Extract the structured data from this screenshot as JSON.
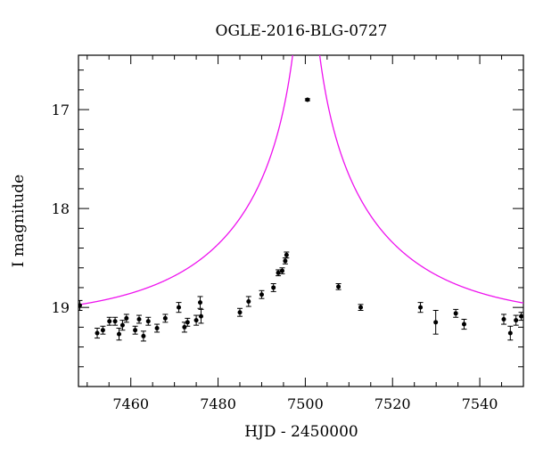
{
  "chart_data": {
    "type": "scatter",
    "title": "OGLE-2016-BLG-0727",
    "xlabel": "HJD - 2450000",
    "ylabel": "I magnitude",
    "xlim": [
      7448,
      7550
    ],
    "ylim": [
      19.8,
      16.45
    ],
    "y_inverted": true,
    "x_ticks": [
      7460,
      7480,
      7500,
      7520,
      7540
    ],
    "y_ticks": [
      17,
      18,
      19
    ],
    "grid": false,
    "colors": {
      "model": "#ee11ee",
      "points": "#000000"
    },
    "model_curve": {
      "name": "",
      "baseline_mag": 19.13,
      "t0": 7500.2,
      "tE": 37.0,
      "u0": 0.0135
    },
    "series": [
      {
        "name": "",
        "points": [
          {
            "x": 7448.3,
            "y": 18.98,
            "err": 0.05
          },
          {
            "x": 7452.3,
            "y": 19.26,
            "err": 0.05
          },
          {
            "x": 7453.6,
            "y": 19.23,
            "err": 0.04
          },
          {
            "x": 7455.1,
            "y": 19.14,
            "err": 0.04
          },
          {
            "x": 7456.4,
            "y": 19.14,
            "err": 0.04
          },
          {
            "x": 7457.3,
            "y": 19.27,
            "err": 0.06
          },
          {
            "x": 7458.1,
            "y": 19.18,
            "err": 0.05
          },
          {
            "x": 7459.0,
            "y": 19.11,
            "err": 0.04
          },
          {
            "x": 7461.0,
            "y": 19.23,
            "err": 0.04
          },
          {
            "x": 7461.9,
            "y": 19.12,
            "err": 0.04
          },
          {
            "x": 7462.9,
            "y": 19.29,
            "err": 0.05
          },
          {
            "x": 7464.0,
            "y": 19.14,
            "err": 0.04
          },
          {
            "x": 7466.0,
            "y": 19.21,
            "err": 0.04
          },
          {
            "x": 7467.9,
            "y": 19.11,
            "err": 0.04
          },
          {
            "x": 7471.0,
            "y": 19.0,
            "err": 0.05
          },
          {
            "x": 7472.3,
            "y": 19.2,
            "err": 0.05
          },
          {
            "x": 7473.0,
            "y": 19.15,
            "err": 0.04
          },
          {
            "x": 7475.0,
            "y": 19.13,
            "err": 0.05
          },
          {
            "x": 7475.9,
            "y": 18.95,
            "err": 0.06
          },
          {
            "x": 7476.1,
            "y": 19.09,
            "err": 0.07
          },
          {
            "x": 7485.0,
            "y": 19.05,
            "err": 0.04
          },
          {
            "x": 7487.0,
            "y": 18.94,
            "err": 0.05
          },
          {
            "x": 7490.0,
            "y": 18.87,
            "err": 0.04
          },
          {
            "x": 7492.7,
            "y": 18.8,
            "err": 0.04
          },
          {
            "x": 7493.8,
            "y": 18.65,
            "err": 0.03
          },
          {
            "x": 7494.7,
            "y": 18.63,
            "err": 0.03
          },
          {
            "x": 7495.4,
            "y": 18.53,
            "err": 0.03
          },
          {
            "x": 7495.7,
            "y": 18.47,
            "err": 0.03
          },
          {
            "x": 7500.5,
            "y": 16.9,
            "err": 0.01
          },
          {
            "x": 7507.6,
            "y": 18.79,
            "err": 0.03
          },
          {
            "x": 7512.7,
            "y": 19.0,
            "err": 0.03
          },
          {
            "x": 7526.4,
            "y": 19.0,
            "err": 0.05
          },
          {
            "x": 7529.9,
            "y": 19.15,
            "err": 0.12
          },
          {
            "x": 7534.5,
            "y": 19.06,
            "err": 0.04
          },
          {
            "x": 7536.4,
            "y": 19.17,
            "err": 0.05
          },
          {
            "x": 7545.5,
            "y": 19.12,
            "err": 0.05
          },
          {
            "x": 7547.0,
            "y": 19.26,
            "err": 0.07
          },
          {
            "x": 7548.3,
            "y": 19.13,
            "err": 0.05
          },
          {
            "x": 7549.5,
            "y": 19.09,
            "err": 0.04
          }
        ]
      }
    ]
  }
}
